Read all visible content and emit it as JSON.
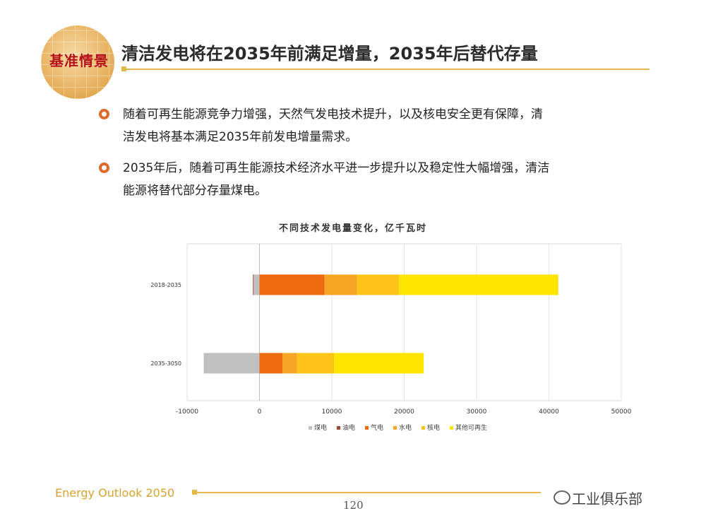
{
  "logo": {
    "label": "基准情景"
  },
  "header": {
    "title": "清洁发电将在2035年前满足增量，2035年后替代存量"
  },
  "bullets": [
    {
      "line1": "随着可再生能源竞争力增强，天然气发电技术提升，以及核电安全更有保障，清",
      "line2": "洁发电将基本满足2035年前发电增量需求。"
    },
    {
      "line1": "2035年后，随着可再生能源技术经济水平进一步提升以及稳定性大幅增强，清洁",
      "line2": "能源将替代部分存量煤电。"
    }
  ],
  "chart_data": {
    "type": "bar",
    "orientation": "horizontal",
    "stacked": true,
    "title": "不同技术发电量变化，亿千瓦时",
    "categories": [
      "2018-2035",
      "2035-3050"
    ],
    "series": [
      {
        "name": "煤电",
        "color": "#c0c0c0",
        "values": [
          -800,
          -7700
        ]
      },
      {
        "name": "油电",
        "color": "#a0453a",
        "values": [
          -100,
          0
        ]
      },
      {
        "name": "气电",
        "color": "#f06a0e",
        "values": [
          9000,
          3200
        ]
      },
      {
        "name": "水电",
        "color": "#f5a623",
        "values": [
          4500,
          2000
        ]
      },
      {
        "name": "核电",
        "color": "#fcc419",
        "values": [
          5800,
          5100
        ]
      },
      {
        "name": "其他可再生",
        "color": "#fde500",
        "values": [
          22000,
          12400
        ]
      }
    ],
    "xlim": [
      -10000,
      50000
    ],
    "xticks": [
      -10000,
      0,
      10000,
      20000,
      30000,
      40000,
      50000
    ],
    "grid": "vertical",
    "legend": "bottom"
  },
  "footer": {
    "title": "Energy Outlook 2050",
    "page": "120",
    "watermark": "工业俱乐部"
  }
}
